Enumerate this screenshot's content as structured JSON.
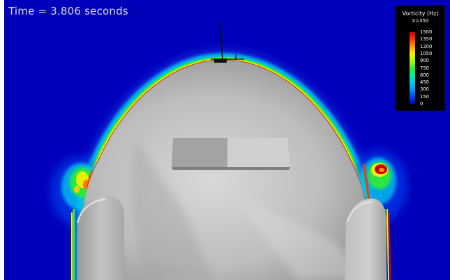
{
  "overlay": {
    "time_text": "Time = 3.806 seconds"
  },
  "legend": {
    "title": "Vorticity (Hz)",
    "subtitle": "X=350",
    "ticks": [
      "1500",
      "1350",
      "1200",
      "1050",
      "900",
      "750",
      "600",
      "450",
      "300",
      "150",
      "0"
    ],
    "colormap": [
      "#cc0000",
      "#ff3300",
      "#ff9900",
      "#ffee00",
      "#aaff00",
      "#33ee33",
      "#00ee99",
      "#00ccee",
      "#0099ff",
      "#0044ee",
      "#0000cc"
    ]
  },
  "colors": {
    "background_field": "#0000bb",
    "body_surface": "#b8b8b8",
    "text": "#d7d7d7"
  }
}
